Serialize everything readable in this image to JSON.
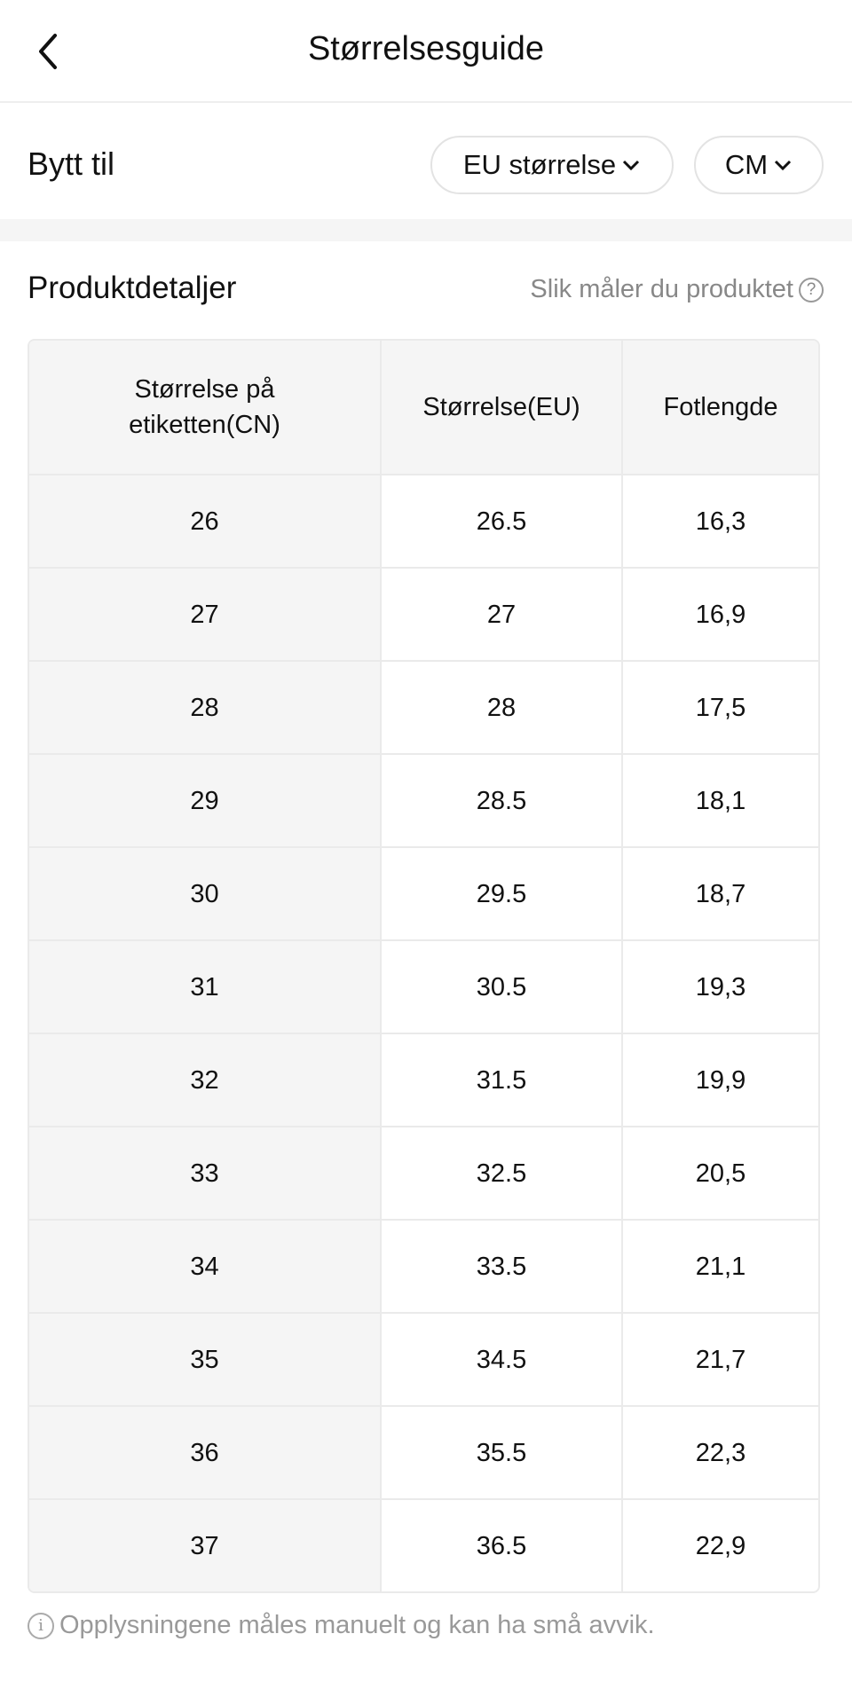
{
  "header": {
    "title": "Størrelsesguide",
    "back_icon": "chevron-left-icon"
  },
  "switch": {
    "label": "Bytt til",
    "size_system": "EU størrelse",
    "unit": "CM"
  },
  "section": {
    "title": "Produktdetaljer",
    "how_to_measure": "Slik måler du produktet"
  },
  "table": {
    "columns": [
      "Størrelse på etiketten(CN)",
      "Størrelse(EU)",
      "Fotlengde"
    ],
    "rows": [
      [
        "26",
        "26.5",
        "16,3"
      ],
      [
        "27",
        "27",
        "16,9"
      ],
      [
        "28",
        "28",
        "17,5"
      ],
      [
        "29",
        "28.5",
        "18,1"
      ],
      [
        "30",
        "29.5",
        "18,7"
      ],
      [
        "31",
        "30.5",
        "19,3"
      ],
      [
        "32",
        "31.5",
        "19,9"
      ],
      [
        "33",
        "32.5",
        "20,5"
      ],
      [
        "34",
        "33.5",
        "21,1"
      ],
      [
        "35",
        "34.5",
        "21,7"
      ],
      [
        "36",
        "35.5",
        "22,3"
      ],
      [
        "37",
        "36.5",
        "22,9"
      ]
    ]
  },
  "note": "Opplysningene måles manuelt og kan ha små avvik."
}
